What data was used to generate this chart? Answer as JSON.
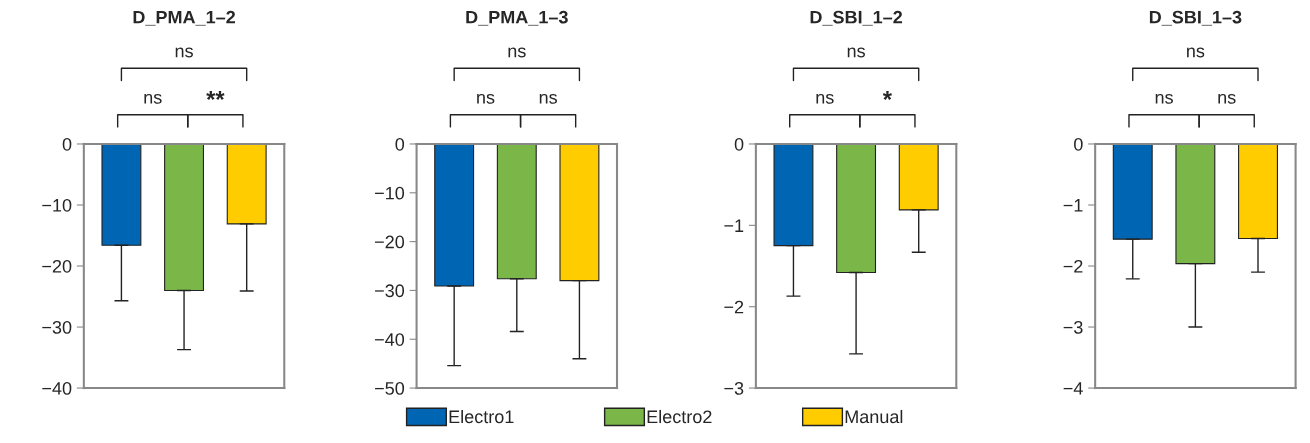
{
  "chart_data": [
    {
      "type": "bar",
      "title": "D_PMA_1–2",
      "categories": [
        null
      ],
      "tick_labels": "y",
      "legend": "bottom",
      "ylim": [
        -40,
        0
      ],
      "yticks": [
        {
          "value": 0,
          "label": "0"
        },
        {
          "value": -10,
          "label": "−10"
        },
        {
          "value": -20,
          "label": "−20"
        },
        {
          "value": -30,
          "label": "−30"
        },
        {
          "value": -40,
          "label": "−40"
        }
      ],
      "series": [
        {
          "name": "Electro1",
          "color": "#0066b3",
          "values": [
            -16.6
          ],
          "errors": [
            [
              -25.7,
              -16.6
            ]
          ]
        },
        {
          "name": "Electro2",
          "color": "#7ab648",
          "values": [
            -24.0
          ],
          "errors": [
            [
              -33.7,
              -24.0
            ]
          ]
        },
        {
          "name": "Manual",
          "color": "#ffcc00",
          "values": [
            -13.1
          ],
          "errors": [
            [
              -24.1,
              -13.1
            ]
          ]
        }
      ],
      "annotations": [
        "ns",
        "**",
        "ns"
      ]
    },
    {
      "type": "bar",
      "title": "D_PMA_1–3",
      "categories": [
        null
      ],
      "tick_labels": "y",
      "ylim": [
        -50,
        0
      ],
      "yticks": [
        {
          "value": 0,
          "label": "0"
        },
        {
          "value": -10,
          "label": "−10"
        },
        {
          "value": -20,
          "label": "−20"
        },
        {
          "value": -30,
          "label": "−30"
        },
        {
          "value": -40,
          "label": "−40"
        },
        {
          "value": -50,
          "label": "−50"
        }
      ],
      "series": [
        {
          "color": "#0066b3",
          "values": [
            -29.1
          ],
          "errors": [
            [
              -45.4,
              -29.1
            ]
          ]
        },
        {
          "color": "#7ab648",
          "values": [
            -27.6
          ],
          "errors": [
            [
              -38.4,
              -27.6
            ]
          ]
        },
        {
          "color": "#ffcc00",
          "values": [
            -28.0
          ],
          "errors": [
            [
              -44.0,
              -28.0
            ]
          ]
        }
      ],
      "annotations": [
        "ns",
        "ns",
        "ns"
      ]
    },
    {
      "type": "bar",
      "title": "D_SBI_1–2",
      "categories": [
        null
      ],
      "tick_labels": "y",
      "ylim": [
        -3,
        0
      ],
      "yticks": [
        {
          "value": 0,
          "label": "0"
        },
        {
          "value": -1,
          "label": "−1"
        },
        {
          "value": -2,
          "label": "−2"
        },
        {
          "value": -3,
          "label": "−3"
        }
      ],
      "series": [
        {
          "color": "#0066b3",
          "values": [
            -1.25
          ],
          "errors": [
            [
              -1.87,
              -1.25
            ]
          ]
        },
        {
          "color": "#7ab648",
          "values": [
            -1.58
          ],
          "errors": [
            [
              -2.58,
              -1.58
            ]
          ]
        },
        {
          "color": "#ffcc00",
          "values": [
            -0.81
          ],
          "errors": [
            [
              -1.33,
              -0.81
            ]
          ]
        }
      ],
      "annotations": [
        "ns",
        "*",
        "ns"
      ]
    },
    {
      "type": "bar",
      "title": "D_SBI_1–3",
      "categories": [
        null
      ],
      "tick_labels": "y",
      "ylim": [
        -4,
        0
      ],
      "yticks": [
        {
          "value": 0,
          "label": "0"
        },
        {
          "value": -1,
          "label": "−1"
        },
        {
          "value": -2,
          "label": "−2"
        },
        {
          "value": -3,
          "label": "−3"
        },
        {
          "value": -4,
          "label": "−4"
        }
      ],
      "series": [
        {
          "color": "#0066b3",
          "values": [
            -1.56
          ],
          "errors": [
            [
              -2.21,
              -1.56
            ]
          ]
        },
        {
          "color": "#7ab648",
          "values": [
            -1.96
          ],
          "errors": [
            [
              -3.0,
              -1.96
            ]
          ]
        },
        {
          "color": "#ffcc00",
          "values": [
            -1.55
          ],
          "errors": [
            [
              -2.1,
              -1.55
            ]
          ]
        }
      ],
      "annotations": [
        "ns",
        "ns",
        "ns"
      ]
    }
  ]
}
